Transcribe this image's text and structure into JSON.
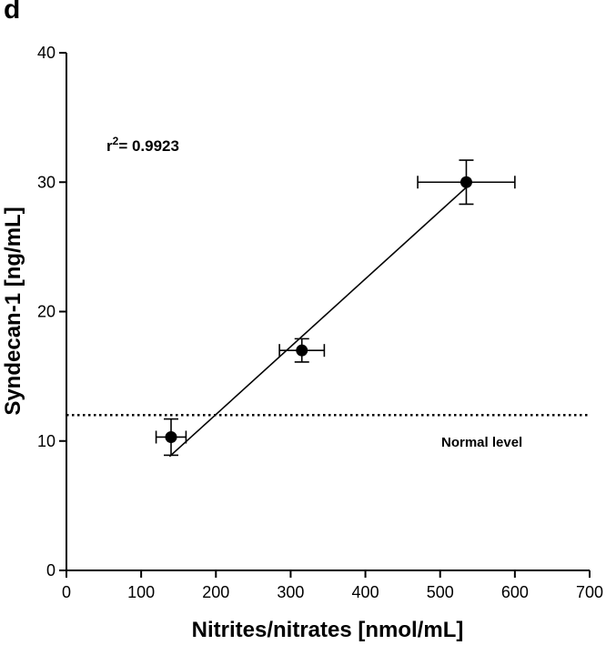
{
  "panel_label": "d",
  "chart_data": {
    "type": "scatter",
    "xlabel": "Nitrites/nitrates [nmol/mL]",
    "ylabel": "Syndecan-1 [ng/mL]",
    "xlim": [
      0,
      700
    ],
    "ylim": [
      0,
      40
    ],
    "x_ticks": [
      0,
      100,
      200,
      300,
      400,
      500,
      600,
      700
    ],
    "y_ticks": [
      0,
      10,
      20,
      30,
      40
    ],
    "grid": false,
    "points": [
      {
        "x": 140,
        "y": 10.3,
        "x_err": 20,
        "y_err": 1.4
      },
      {
        "x": 315,
        "y": 17.0,
        "x_err": 30,
        "y_err": 0.9
      },
      {
        "x": 535,
        "y": 30.0,
        "x_err": 65,
        "y_err": 1.7
      }
    ],
    "regression_line": {
      "x": [
        138,
        535
      ],
      "y": [
        8.8,
        29.6
      ]
    },
    "reference_line": {
      "y": 12.0,
      "label": "Normal level",
      "style": "dotted"
    },
    "annotation": {
      "base": "r",
      "superscript": "2",
      "text": "= 0.9923"
    }
  }
}
